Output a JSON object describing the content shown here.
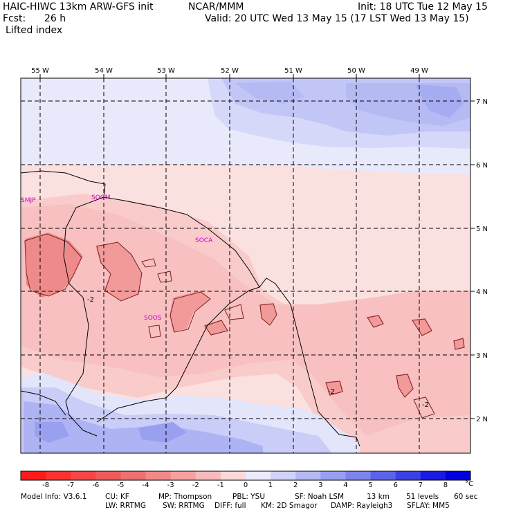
{
  "header": {
    "title_left": "HAIC-HIWC 13km ARW-GFS init",
    "title_center": "NCAR/MMM",
    "init": "Init: 18 UTC Tue 12 May 15",
    "fcst_label": "Fcst:",
    "fcst_value": "26 h",
    "valid": "Valid: 20 UTC Wed 13 May 15 (17 LST Wed 13 May 15)",
    "field": "Lifted index"
  },
  "map": {
    "longitude_labels": [
      "55 W",
      "54 W",
      "53 W",
      "52 W",
      "51 W",
      "50 W",
      "49 W"
    ],
    "latitude_labels": [
      "7 N",
      "6 N",
      "5 N",
      "4 N",
      "3 N",
      "2 N"
    ],
    "stations": [
      "SMJP",
      "SOGM",
      "SOCA",
      "SOOS"
    ],
    "contour_labels": [
      "-2",
      "-2",
      "-2"
    ],
    "colors": {
      "neg_light": "#fbd4d4",
      "neg_mid": "#f6aaaa",
      "neg_strong": "#ee8080",
      "pos_light": "#e6e8fb",
      "pos_mid": "#c2c6f6",
      "pos_strong": "#9ca2ef",
      "station": "#cc00cc"
    }
  },
  "colorbar": {
    "tick_labels": [
      "-8",
      "-7",
      "-6",
      "-5",
      "-4",
      "-3",
      "-2",
      "-1",
      "0",
      "1",
      "2",
      "3",
      "4",
      "5",
      "6",
      "7",
      "8"
    ],
    "unit": "°C",
    "colors": [
      "#ff1a1a",
      "#ff3030",
      "#f64545",
      "#f05a5a",
      "#ee7070",
      "#f28888",
      "#f6a0a0",
      "#f8baba",
      "#fcd8d8",
      "#ebebfc",
      "#d0d2f9",
      "#b4b8f5",
      "#989ef2",
      "#7d84ee",
      "#5c63ea",
      "#3a42e6",
      "#1a1ae6",
      "#0000e0"
    ]
  },
  "model_info": {
    "line1": [
      "Model Info: V3.6.1",
      "CU: KF",
      "MP: Thompson",
      "PBL: YSU",
      "SF: Noah LSM",
      "13 km",
      "51 levels",
      "60 sec"
    ],
    "line2": [
      "LW: RRTMG",
      "SW: RRTMG",
      "DIFF: full",
      "KM: 2D Smagor",
      "DAMP: Rayleigh3",
      "SFLAY: MM5"
    ]
  }
}
